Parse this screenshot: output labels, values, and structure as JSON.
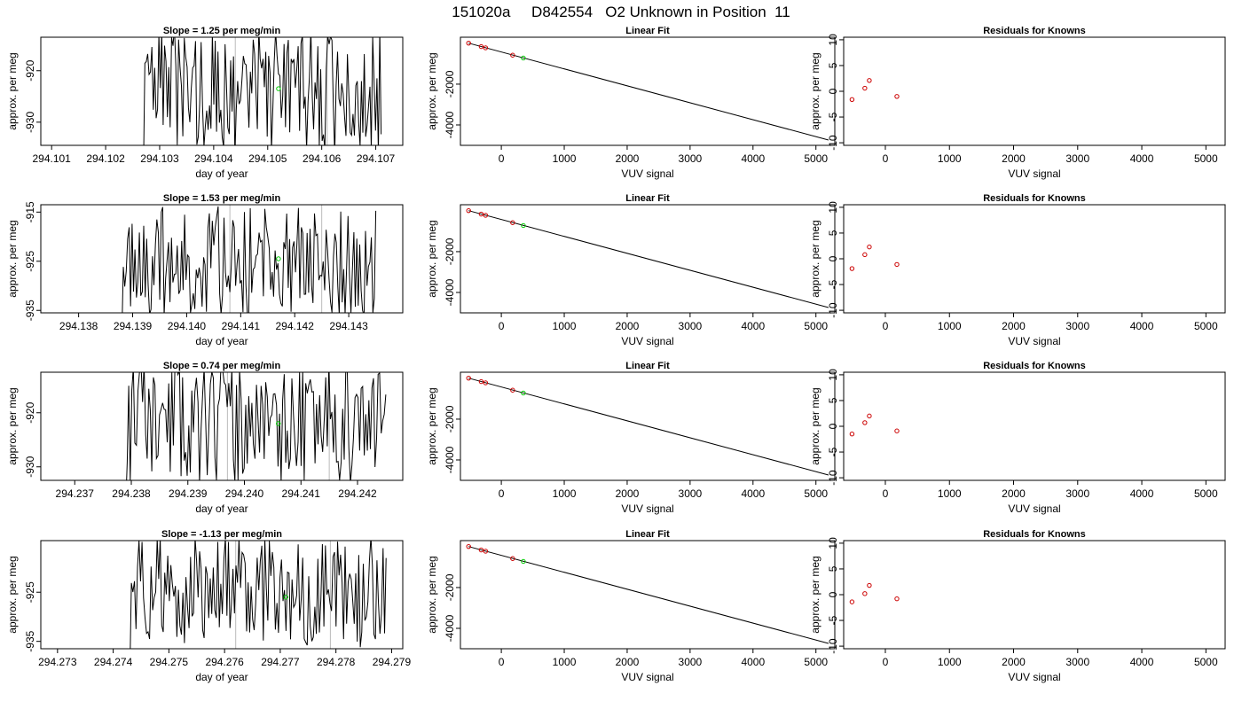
{
  "page_title": "151020a     D842554   O2 Unknown in Position  11",
  "colors": {
    "series": "#000000",
    "unknown": "#00cc00",
    "known": "#cc0000",
    "vline": "#bbbbbb"
  },
  "chart_data": [
    {
      "type": "line",
      "title": "Slope =  1.25  per meg/min",
      "xlabel": "day of year",
      "ylabel": "approx. per meg",
      "xlim": [
        294.1008,
        294.1075
      ],
      "ylim": [
        -934.5,
        -913.5
      ],
      "xticks": [
        "294.101",
        "294.102",
        "294.103",
        "294.104",
        "294.105",
        "294.106",
        "294.107"
      ],
      "yticks": [
        "-920",
        "-930"
      ],
      "trace": {
        "x_start": 294.1027,
        "x_end": 294.1071,
        "points": 170,
        "center": -924,
        "amplitude": 10,
        "seed": 3
      },
      "vlines": [
        294.1044,
        294.1061
      ],
      "unknown_point": {
        "x": 294.1052,
        "y": -923.5
      }
    },
    {
      "type": "line",
      "title": "Linear Fit",
      "xlabel": "VUV signal",
      "ylabel": "approx. per meg",
      "xlim": [
        -650,
        5300
      ],
      "ylim": [
        -5000,
        300
      ],
      "xticks": [
        "0",
        "1000",
        "2000",
        "3000",
        "4000",
        "5000"
      ],
      "yticks": [
        "-2000",
        "-4000"
      ],
      "fit_line": {
        "x": [
          -520,
          5200
        ],
        "y": [
          10,
          -4740
        ]
      },
      "knowns": {
        "x": [
          -520,
          -320,
          -250,
          180
        ],
        "y": [
          10,
          -160,
          -220,
          -580
        ]
      },
      "unknown_point": {
        "x": 350,
        "y": -720
      }
    },
    {
      "type": "scatter",
      "title": "Residuals for Knowns",
      "xlabel": "VUV signal",
      "ylabel": "approx. per meg",
      "xlim": [
        -650,
        5300
      ],
      "ylim": [
        -10.5,
        10.5
      ],
      "xticks": [
        "0",
        "1000",
        "2000",
        "3000",
        "4000",
        "5000"
      ],
      "yticks": [
        "-10",
        "-5",
        "0",
        "5",
        "10"
      ],
      "points": {
        "x": [
          -520,
          -320,
          -250,
          180
        ],
        "y": [
          -1.6,
          0.6,
          2.1,
          -1.0
        ]
      }
    },
    {
      "type": "line",
      "title": "Slope =  1.53  per meg/min",
      "xlabel": "day of year",
      "ylabel": "approx. per meg",
      "xlim": [
        294.1373,
        294.144
      ],
      "ylim": [
        -935.5,
        -913.5
      ],
      "xticks": [
        "294.138",
        "294.139",
        "294.140",
        "294.141",
        "294.142",
        "294.143"
      ],
      "yticks": [
        "-915",
        "-925",
        "-935"
      ],
      "trace": {
        "x_start": 294.1388,
        "x_end": 294.1435,
        "points": 175,
        "center": -925,
        "amplitude": 9,
        "seed": 7
      },
      "vlines": [
        294.1408,
        294.1425
      ],
      "unknown_point": {
        "x": 294.1417,
        "y": -924.5
      }
    },
    {
      "type": "line",
      "title": "Linear Fit",
      "xlabel": "VUV signal",
      "ylabel": "approx. per meg",
      "xlim": [
        -650,
        5300
      ],
      "ylim": [
        -5000,
        300
      ],
      "xticks": [
        "0",
        "1000",
        "2000",
        "3000",
        "4000",
        "5000"
      ],
      "yticks": [
        "-2000",
        "-4000"
      ],
      "fit_line": {
        "x": [
          -520,
          5200
        ],
        "y": [
          10,
          -4740
        ]
      },
      "knowns": {
        "x": [
          -520,
          -320,
          -250,
          180
        ],
        "y": [
          10,
          -160,
          -220,
          -580
        ]
      },
      "unknown_point": {
        "x": 350,
        "y": -720
      }
    },
    {
      "type": "scatter",
      "title": "Residuals for Knowns",
      "xlabel": "VUV signal",
      "ylabel": "approx. per meg",
      "xlim": [
        -650,
        5300
      ],
      "ylim": [
        -10.5,
        10.5
      ],
      "xticks": [
        "0",
        "1000",
        "2000",
        "3000",
        "4000",
        "5000"
      ],
      "yticks": [
        "-10",
        "-5",
        "0",
        "5",
        "10"
      ],
      "points": {
        "x": [
          -520,
          -320,
          -250,
          180
        ],
        "y": [
          -1.9,
          0.8,
          2.3,
          -1.1
        ]
      }
    },
    {
      "type": "line",
      "title": "Slope =  0.74  per meg/min",
      "xlabel": "day of year",
      "ylabel": "approx. per meg",
      "xlim": [
        294.2364,
        294.2428
      ],
      "ylim": [
        -932.5,
        -912.5
      ],
      "xticks": [
        "294.237",
        "294.238",
        "294.239",
        "294.240",
        "294.241",
        "294.242"
      ],
      "yticks": [
        "-920",
        "-930"
      ],
      "trace": {
        "x_start": 294.2379,
        "x_end": 294.2425,
        "points": 170,
        "center": -922,
        "amplitude": 9,
        "seed": 11
      },
      "vlines": [
        294.2397,
        294.2415
      ],
      "unknown_point": {
        "x": 294.2406,
        "y": -922
      }
    },
    {
      "type": "line",
      "title": "Linear Fit",
      "xlabel": "VUV signal",
      "ylabel": "approx. per meg",
      "xlim": [
        -650,
        5300
      ],
      "ylim": [
        -5000,
        300
      ],
      "xticks": [
        "0",
        "1000",
        "2000",
        "3000",
        "4000",
        "5000"
      ],
      "yticks": [
        "-2000",
        "-4000"
      ],
      "fit_line": {
        "x": [
          -520,
          5200
        ],
        "y": [
          10,
          -4740
        ]
      },
      "knowns": {
        "x": [
          -520,
          -320,
          -250,
          180
        ],
        "y": [
          10,
          -160,
          -220,
          -580
        ]
      },
      "unknown_point": {
        "x": 350,
        "y": -720
      }
    },
    {
      "type": "scatter",
      "title": "Residuals for Knowns",
      "xlabel": "VUV signal",
      "ylabel": "approx. per meg",
      "xlim": [
        -650,
        5300
      ],
      "ylim": [
        -10.5,
        10.5
      ],
      "xticks": [
        "0",
        "1000",
        "2000",
        "3000",
        "4000",
        "5000"
      ],
      "yticks": [
        "-10",
        "-5",
        "0",
        "5",
        "10"
      ],
      "points": {
        "x": [
          -520,
          -320,
          -250,
          180
        ],
        "y": [
          -1.5,
          0.7,
          2.0,
          -0.9
        ]
      }
    },
    {
      "type": "line",
      "title": "Slope =  -1.13  per meg/min",
      "xlabel": "day of year",
      "ylabel": "approx. per meg",
      "xlim": [
        294.2727,
        294.2792
      ],
      "ylim": [
        -936.5,
        -914.5
      ],
      "xticks": [
        "294.273",
        "294.274",
        "294.275",
        "294.276",
        "294.277",
        "294.278",
        "294.279"
      ],
      "yticks": [
        "-925",
        "-935"
      ],
      "trace": {
        "x_start": 294.2743,
        "x_end": 294.2789,
        "points": 170,
        "center": -925,
        "amplitude": 9,
        "seed": 5
      },
      "vlines": [
        294.2762,
        294.2779
      ],
      "unknown_point": {
        "x": 294.2771,
        "y": -926
      }
    },
    {
      "type": "line",
      "title": "Linear Fit",
      "xlabel": "VUV signal",
      "ylabel": "approx. per meg",
      "xlim": [
        -650,
        5300
      ],
      "ylim": [
        -5000,
        300
      ],
      "xticks": [
        "0",
        "1000",
        "2000",
        "3000",
        "4000",
        "5000"
      ],
      "yticks": [
        "-2000",
        "-4000"
      ],
      "fit_line": {
        "x": [
          -520,
          5200
        ],
        "y": [
          10,
          -4740
        ]
      },
      "knowns": {
        "x": [
          -520,
          -320,
          -250,
          180
        ],
        "y": [
          10,
          -160,
          -220,
          -580
        ]
      },
      "unknown_point": {
        "x": 350,
        "y": -720
      }
    },
    {
      "type": "scatter",
      "title": "Residuals for Knowns",
      "xlabel": "VUV signal",
      "ylabel": "approx. per meg",
      "xlim": [
        -650,
        5300
      ],
      "ylim": [
        -10.5,
        10.5
      ],
      "xticks": [
        "0",
        "1000",
        "2000",
        "3000",
        "4000",
        "5000"
      ],
      "yticks": [
        "-10",
        "-5",
        "0",
        "5",
        "10"
      ],
      "points": {
        "x": [
          -520,
          -320,
          -250,
          180
        ],
        "y": [
          -1.4,
          0.2,
          1.8,
          -0.8
        ]
      }
    }
  ]
}
